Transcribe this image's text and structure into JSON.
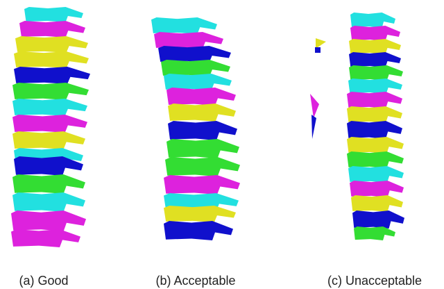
{
  "captions": [
    "(a) Good",
    "(b) Acceptable",
    "(c) Unacceptable"
  ]
}
